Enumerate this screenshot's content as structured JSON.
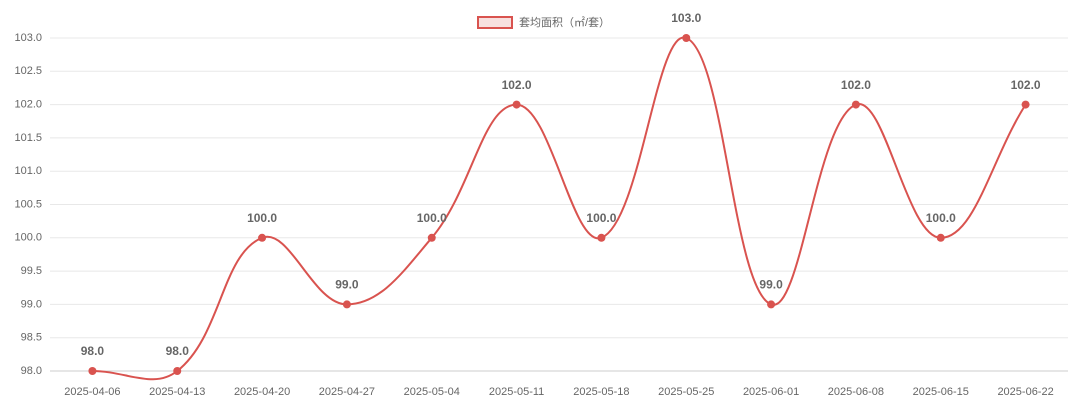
{
  "chart_data": {
    "type": "line",
    "categories": [
      "2025-04-06",
      "2025-04-13",
      "2025-04-20",
      "2025-04-27",
      "2025-05-04",
      "2025-05-11",
      "2025-05-18",
      "2025-05-25",
      "2025-06-01",
      "2025-06-08",
      "2025-06-15",
      "2025-06-22"
    ],
    "series": [
      {
        "name": "套均面积（㎡/套）",
        "color": "#d9534f",
        "values": [
          98,
          98,
          100,
          99,
          100,
          102,
          100,
          103,
          99,
          102,
          100,
          102
        ],
        "value_labels": [
          "98.0",
          "98.0",
          "100.0",
          "99.0",
          "100.0",
          "102.0",
          "100.0",
          "103.0",
          "99.0",
          "102.0",
          "100.0",
          "102.0"
        ]
      }
    ],
    "ylim": [
      98,
      103
    ],
    "yticks": [
      {
        "value": 98,
        "label": "98.0"
      },
      98.5,
      {
        "value": 99,
        "label": "99.0"
      },
      99.5,
      {
        "value": 100,
        "label": "100.0"
      },
      100.5,
      {
        "value": 101,
        "label": "101.0"
      },
      101.5,
      {
        "value": 102,
        "label": "102.0"
      },
      102.5,
      {
        "value": 103,
        "label": "103.0"
      }
    ],
    "grid": true
  }
}
